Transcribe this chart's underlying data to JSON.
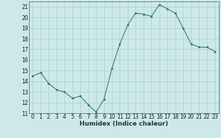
{
  "x": [
    0,
    1,
    2,
    3,
    4,
    5,
    6,
    7,
    8,
    9,
    10,
    11,
    12,
    13,
    14,
    15,
    16,
    17,
    18,
    19,
    20,
    21,
    22,
    23
  ],
  "y": [
    14.5,
    14.8,
    13.8,
    13.2,
    13.0,
    12.4,
    12.6,
    11.8,
    11.1,
    12.3,
    15.2,
    17.5,
    19.3,
    20.4,
    20.3,
    20.1,
    21.2,
    20.8,
    20.4,
    19.0,
    17.5,
    17.2,
    17.2,
    16.8
  ],
  "xlabel": "Humidex (Indice chaleur)",
  "xlim": [
    -0.5,
    23.5
  ],
  "ylim": [
    11,
    21.5
  ],
  "yticks": [
    11,
    12,
    13,
    14,
    15,
    16,
    17,
    18,
    19,
    20,
    21
  ],
  "xticks": [
    0,
    1,
    2,
    3,
    4,
    5,
    6,
    7,
    8,
    9,
    10,
    11,
    12,
    13,
    14,
    15,
    16,
    17,
    18,
    19,
    20,
    21,
    22,
    23
  ],
  "line_color": "#2e7d6e",
  "marker_color": "#2e7d6e",
  "bg_color": "#cce8e8",
  "grid_color": "#aacccc",
  "xlabel_fontsize": 6.5,
  "tick_fontsize": 5.5
}
